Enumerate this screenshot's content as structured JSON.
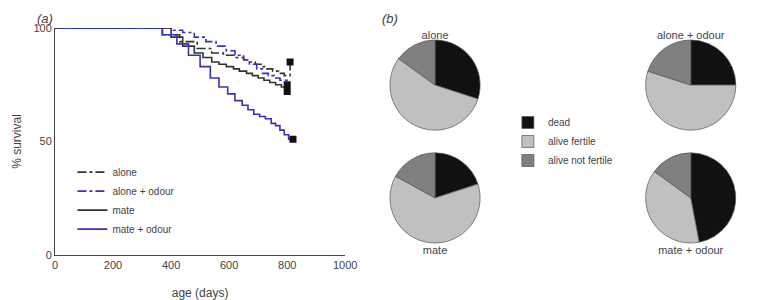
{
  "chart_data": [
    {
      "type": "line",
      "title": "(a)",
      "xlabel": "age (days)",
      "ylabel": "% survival",
      "xlim": [
        0,
        1000
      ],
      "ylim": [
        0,
        100
      ],
      "xticks": [
        0,
        200,
        400,
        600,
        800,
        1000
      ],
      "yticks": [
        0,
        50,
        100
      ],
      "grid": false,
      "legend": "lower left",
      "series": [
        {
          "name": "alone",
          "color": "#333333",
          "line_style": "dashdot",
          "x": [
            0,
            370,
            370,
            430,
            430,
            490,
            490,
            540,
            540,
            580,
            580,
            620,
            620,
            650,
            650,
            670,
            670,
            690,
            690,
            710,
            710,
            730,
            730,
            750,
            750,
            770,
            770,
            790,
            790,
            810,
            810
          ],
          "values": [
            100,
            100,
            97,
            97,
            94,
            94,
            91,
            91,
            89,
            89,
            88,
            88,
            87,
            87,
            86,
            86,
            85,
            85,
            84,
            84,
            83,
            83,
            82,
            82,
            81,
            81,
            80,
            80,
            79,
            79,
            85
          ]
        },
        {
          "name": "alone + odour",
          "color": "#3333bb",
          "line_style": "dashdot",
          "x": [
            0,
            400,
            400,
            440,
            440,
            480,
            480,
            520,
            520,
            555,
            555,
            590,
            590,
            620,
            620,
            650,
            650,
            670,
            670,
            695,
            695,
            715,
            715,
            735,
            735,
            755,
            755,
            775,
            775,
            800,
            800
          ],
          "values": [
            100,
            100,
            99,
            99,
            98,
            98,
            96,
            96,
            94,
            94,
            92,
            92,
            90,
            90,
            88,
            88,
            86,
            86,
            84,
            84,
            82,
            82,
            80,
            80,
            79,
            79,
            78,
            78,
            77,
            77,
            75
          ]
        },
        {
          "name": "mate",
          "color": "#333333",
          "line_style": "solid",
          "x": [
            0,
            400,
            400,
            440,
            440,
            480,
            480,
            510,
            510,
            540,
            540,
            565,
            565,
            590,
            590,
            615,
            615,
            635,
            635,
            660,
            660,
            680,
            680,
            700,
            700,
            720,
            720,
            740,
            740,
            760,
            760,
            780,
            780,
            800,
            800
          ],
          "values": [
            100,
            100,
            96,
            96,
            92,
            92,
            89,
            89,
            87,
            87,
            85,
            85,
            84,
            84,
            83,
            83,
            82,
            82,
            81,
            81,
            80,
            80,
            79,
            79,
            78,
            78,
            77,
            77,
            76,
            76,
            75,
            75,
            74,
            74,
            72
          ]
        },
        {
          "name": "mate + odour",
          "color": "#3333bb",
          "line_style": "solid",
          "x": [
            0,
            370,
            370,
            420,
            420,
            460,
            460,
            500,
            500,
            535,
            535,
            565,
            565,
            595,
            595,
            620,
            620,
            645,
            645,
            665,
            665,
            685,
            685,
            705,
            705,
            725,
            725,
            745,
            745,
            760,
            760,
            775,
            775,
            790,
            790,
            805,
            805,
            820
          ],
          "values": [
            100,
            100,
            97,
            97,
            93,
            93,
            88,
            88,
            83,
            83,
            78,
            78,
            74,
            74,
            71,
            71,
            68,
            68,
            66,
            66,
            64,
            64,
            62,
            62,
            61,
            61,
            60,
            60,
            58,
            58,
            57,
            57,
            55,
            55,
            53,
            53,
            51,
            51
          ]
        },
        {
          "type": "scatter",
          "marker": "square",
          "color": "#111111",
          "x": [
            810,
            800,
            800,
            820
          ],
          "values": [
            85,
            75,
            72,
            51
          ]
        }
      ]
    },
    {
      "type": "pie",
      "title": "(b)",
      "categories": [
        "dead",
        "alive fertile",
        "alive not fertile"
      ],
      "colors": [
        "#111111",
        "#c0c0c0",
        "#808080"
      ],
      "series": [
        {
          "name": "alone",
          "values": [
            30,
            55,
            15
          ]
        },
        {
          "name": "alone + odour",
          "values": [
            25,
            55,
            20
          ]
        },
        {
          "name": "mate",
          "values": [
            20,
            63,
            17
          ]
        },
        {
          "name": "mate + odour",
          "values": [
            47,
            38,
            15
          ]
        }
      ]
    }
  ]
}
